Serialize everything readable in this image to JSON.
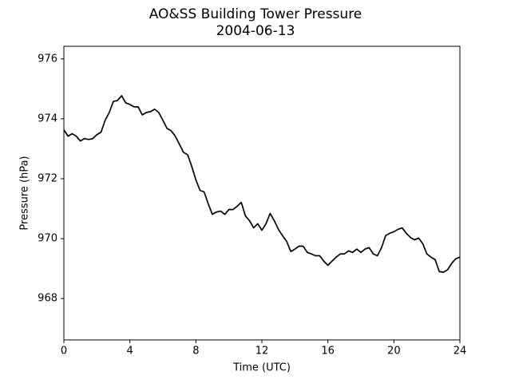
{
  "chart_data": {
    "type": "line",
    "title": "AO&SS Building Tower Pressure",
    "subtitle": "2004-06-13",
    "x_label": "Time (UTC)",
    "y_label": "Pressure (hPa)",
    "xlim": [
      0,
      24
    ],
    "xticks": [
      0,
      4,
      8,
      12,
      16,
      20,
      24
    ],
    "ylim": [
      966.62,
      976.42
    ],
    "yticks": [
      968,
      970,
      972,
      974,
      976
    ],
    "grid": false,
    "x": [
      0,
      0.25,
      0.5,
      0.75,
      1,
      1.25,
      1.5,
      1.75,
      2,
      2.25,
      2.5,
      2.75,
      3,
      3.25,
      3.5,
      3.75,
      4,
      4.25,
      4.5,
      4.75,
      5,
      5.25,
      5.5,
      5.75,
      6,
      6.25,
      6.5,
      6.75,
      7,
      7.25,
      7.5,
      7.75,
      8,
      8.25,
      8.5,
      8.75,
      9,
      9.25,
      9.5,
      9.75,
      10,
      10.25,
      10.5,
      10.75,
      11,
      11.25,
      11.5,
      11.75,
      12,
      12.25,
      12.5,
      12.75,
      13,
      13.25,
      13.5,
      13.75,
      14,
      14.25,
      14.5,
      14.75,
      15,
      15.25,
      15.5,
      15.75,
      16,
      16.25,
      16.5,
      16.75,
      17,
      17.25,
      17.5,
      17.75,
      18,
      18.25,
      18.5,
      18.75,
      19,
      19.25,
      19.5,
      19.75,
      20,
      20.25,
      20.5,
      20.75,
      21,
      21.25,
      21.5,
      21.75,
      22,
      22.25,
      22.5,
      22.75,
      23,
      23.25,
      23.5,
      23.75,
      24
    ],
    "series": [
      {
        "color": "#000000",
        "values": [
          973.63,
          973.42,
          973.5,
          973.42,
          973.26,
          973.34,
          973.31,
          973.34,
          973.47,
          973.55,
          973.95,
          974.21,
          974.58,
          974.61,
          974.77,
          974.53,
          974.48,
          974.4,
          974.4,
          974.13,
          974.21,
          974.24,
          974.32,
          974.21,
          973.95,
          973.68,
          973.6,
          973.42,
          973.15,
          972.88,
          972.8,
          972.41,
          971.96,
          971.61,
          971.56,
          971.16,
          970.81,
          970.89,
          970.92,
          970.81,
          970.97,
          970.97,
          971.08,
          971.21,
          970.76,
          970.6,
          970.36,
          970.5,
          970.28,
          970.5,
          970.84,
          970.6,
          970.31,
          970.1,
          969.91,
          969.57,
          969.65,
          969.75,
          969.75,
          969.54,
          969.49,
          969.43,
          969.43,
          969.25,
          969.11,
          969.25,
          969.38,
          969.49,
          969.49,
          969.59,
          969.54,
          969.65,
          969.54,
          969.65,
          969.7,
          969.49,
          969.43,
          969.7,
          970.1,
          970.18,
          970.23,
          970.31,
          970.36,
          970.18,
          970.04,
          969.96,
          970.02,
          969.83,
          969.49,
          969.38,
          969.3,
          968.9,
          968.88,
          968.96,
          969.17,
          969.33,
          969.38
        ]
      }
    ]
  }
}
